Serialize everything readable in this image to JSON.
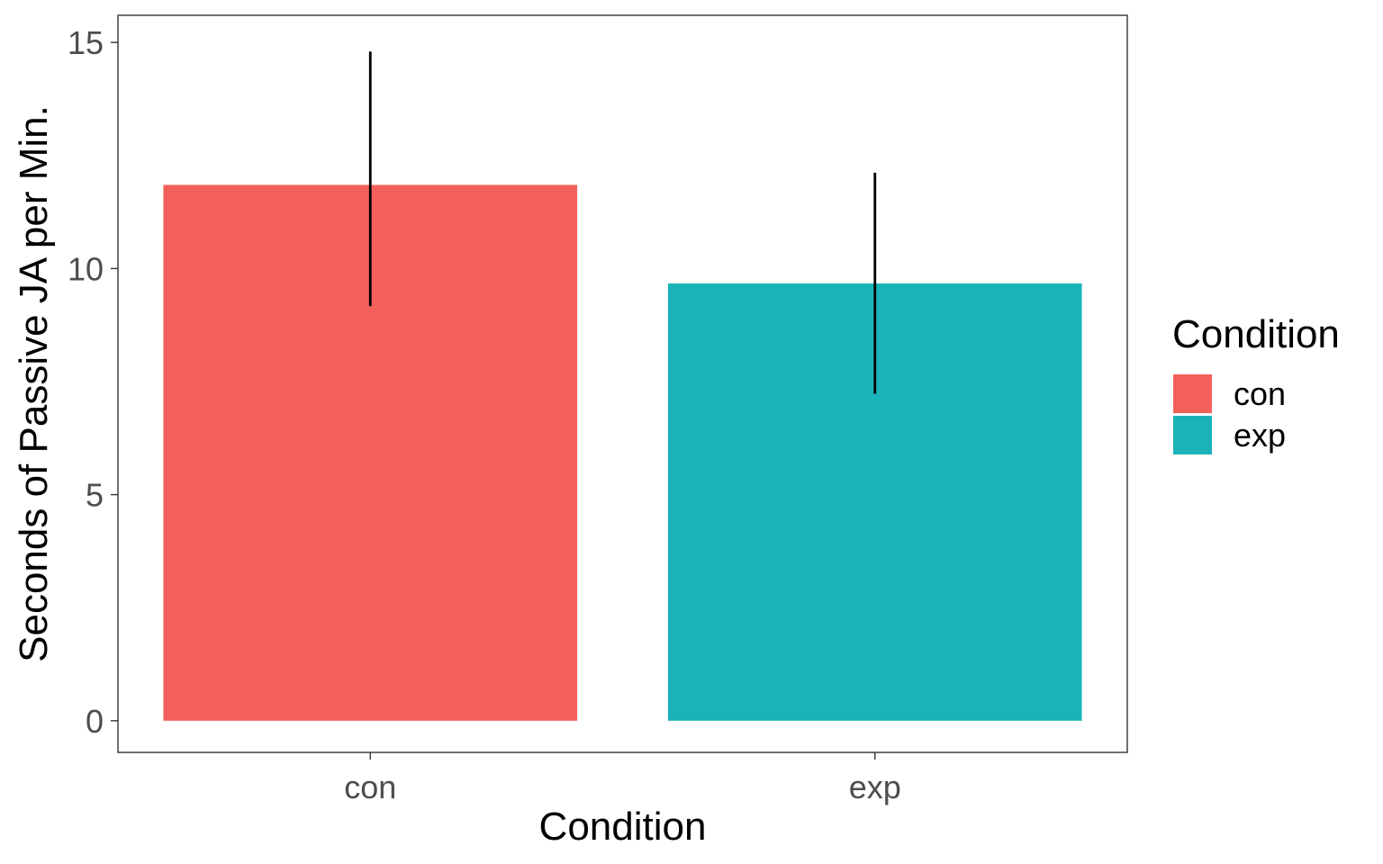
{
  "chart_data": {
    "type": "bar",
    "categories": [
      "con",
      "exp"
    ],
    "values": [
      11.85,
      9.67
    ],
    "error_bars": [
      {
        "low": 9.17,
        "high": 14.8
      },
      {
        "low": 7.23,
        "high": 12.12
      }
    ],
    "colors": [
      "#F8766D",
      "#00BFC4"
    ],
    "bar_colors": [
      "#f3605b",
      "#19b3b8"
    ],
    "xlabel": "Condition",
    "ylabel": "Seconds of Passive JA per Min.",
    "ylim": [
      -0.7,
      15.6
    ],
    "yticks": [
      0,
      5,
      10,
      15
    ],
    "grid": false,
    "legend": {
      "title": "Condition",
      "placement": "right",
      "entries": [
        "con",
        "exp"
      ]
    }
  }
}
